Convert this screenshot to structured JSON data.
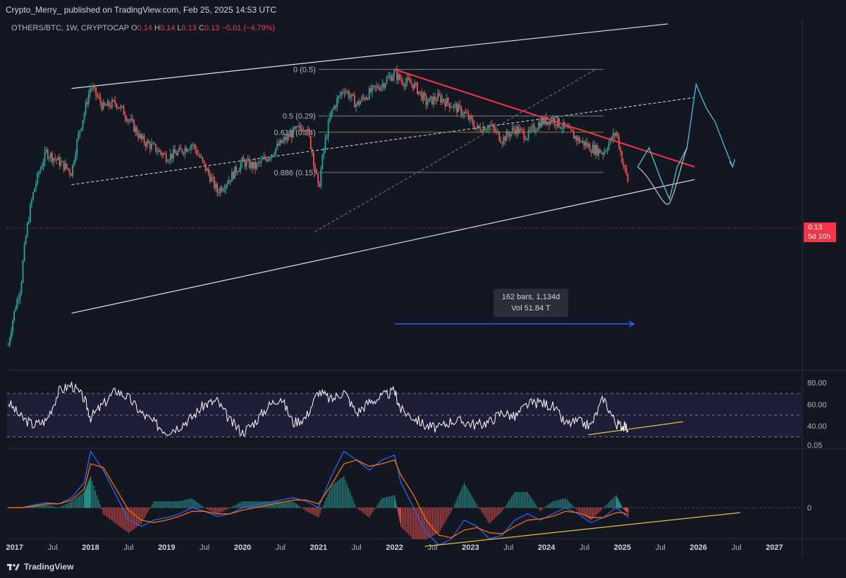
{
  "header": {
    "publisher": "Crypto_Merry_ published on TradingView.com, Feb 25, 2025 14:53 UTC"
  },
  "symbol": {
    "name": "OTHERS/BTC, 1W, CRYPTOCAP",
    "open_key": "O",
    "open": "0.14",
    "high_key": "H",
    "high": "0.14",
    "low_key": "L",
    "low": "0.13",
    "close_key": "C",
    "close": "0.13",
    "change": "−0.01 (−4.79%)"
  },
  "price_badge": {
    "price": "0.13",
    "countdown": "5d 10h"
  },
  "measure": {
    "bars": "162 bars, 1,134d",
    "vol": "Vol 51.84 T"
  },
  "footer": {
    "brand": "TradingView"
  },
  "colors": {
    "background": "#131722",
    "up_candle": "#26a69a",
    "down_candle": "#ef5350",
    "trendline_red": "#f23645",
    "fib_gold": "#8c7d2c",
    "projection": "#4fb3c9",
    "measure_arrow": "#2962ff",
    "rsi_line": "#ffffff",
    "macd_line": "#2962ff",
    "signal_line": "#ff6d00",
    "support_line": "#e0c43a"
  },
  "chart_data": [
    {
      "type": "line",
      "title": "OTHERS/BTC, 1W, CRYPTOCAP",
      "xlabel": "",
      "ylabel": "",
      "x_ticks": [
        "2017",
        "Jul",
        "2018",
        "Jul",
        "2019",
        "Jul",
        "2020",
        "Jul",
        "2021",
        "Jul",
        "2022",
        "Jul",
        "2023",
        "Jul",
        "2024",
        "Jul",
        "2025",
        "Jul",
        "2026",
        "Jul",
        "2027"
      ],
      "fib_levels": [
        {
          "label": "0 (0.5)",
          "value": 0.5
        },
        {
          "label": "0.5 (0.29)",
          "value": 0.29
        },
        {
          "label": "0.618 (0.24)",
          "value": 0.24
        },
        {
          "label": "0.886 (0.15)",
          "value": 0.15
        }
      ],
      "series": [
        {
          "x": [
            "2016-12",
            "2017-02",
            "2017-04",
            "2017-06",
            "2017-08",
            "2017-10",
            "2017-12",
            "2018-01",
            "2018-03",
            "2018-05",
            "2018-07",
            "2018-09",
            "2018-11",
            "2019-01",
            "2019-03",
            "2019-05",
            "2019-07",
            "2019-09",
            "2019-11",
            "2020-01",
            "2020-03",
            "2020-05",
            "2020-07",
            "2020-09",
            "2020-11",
            "2021-01",
            "2021-03",
            "2021-05",
            "2021-07",
            "2021-09",
            "2021-11",
            "2022-01",
            "2022-02",
            "2022-04",
            "2022-06",
            "2022-08",
            "2022-10",
            "2022-12",
            "2023-02",
            "2023-04",
            "2023-06",
            "2023-08",
            "2023-10",
            "2023-12",
            "2024-02",
            "2024-04",
            "2024-06",
            "2024-08",
            "2024-10",
            "2024-12",
            "2025-01",
            "2025-02"
          ],
          "values": [
            0.02,
            0.04,
            0.12,
            0.19,
            0.17,
            0.15,
            0.3,
            0.41,
            0.32,
            0.34,
            0.28,
            0.22,
            0.2,
            0.18,
            0.19,
            0.21,
            0.16,
            0.12,
            0.14,
            0.17,
            0.16,
            0.18,
            0.21,
            0.24,
            0.26,
            0.12,
            0.3,
            0.4,
            0.33,
            0.38,
            0.42,
            0.48,
            0.44,
            0.42,
            0.34,
            0.36,
            0.33,
            0.3,
            0.25,
            0.26,
            0.22,
            0.25,
            0.23,
            0.27,
            0.28,
            0.25,
            0.22,
            0.2,
            0.19,
            0.24,
            0.17,
            0.13
          ]
        }
      ]
    },
    {
      "type": "line",
      "title": "",
      "y_ticks": [
        "80.00",
        "60.00",
        "40.00"
      ],
      "bands": [
        30,
        70
      ],
      "series": [
        {
          "values": [
            62,
            48,
            41,
            45,
            72,
            78,
            65,
            48,
            60,
            73,
            66,
            52,
            43,
            35,
            40,
            48,
            60,
            63,
            45,
            34,
            44,
            58,
            67,
            43,
            48,
            72,
            64,
            72,
            52,
            62,
            67,
            72,
            55,
            48,
            40,
            38,
            45,
            44,
            41,
            44,
            53,
            48,
            60,
            62,
            58,
            42,
            44,
            40,
            66,
            42,
            40,
            38
          ]
        }
      ]
    },
    {
      "type": "line",
      "title": "",
      "y_ticks": [
        "0.05",
        "0"
      ],
      "series": [
        {
          "values": [
            0.0,
            0.0,
            0.002,
            0.004,
            0.003,
            0.008,
            0.02,
            0.045,
            0.03,
            0.01,
            -0.01,
            -0.015,
            -0.01,
            -0.008,
            -0.005,
            0.0,
            -0.003,
            -0.007,
            -0.005,
            0.0,
            0.002,
            0.004,
            0.006,
            0.008,
            0.005,
            0.0,
            0.025,
            0.045,
            0.038,
            0.03,
            0.038,
            0.042,
            0.02,
            0.0,
            -0.02,
            -0.03,
            -0.025,
            -0.01,
            -0.015,
            -0.025,
            -0.022,
            -0.01,
            -0.005,
            -0.01,
            -0.005,
            0.0,
            -0.005,
            -0.012,
            -0.008,
            0.0,
            -0.004,
            -0.008
          ]
        },
        {
          "values": [
            0.0,
            0.0,
            0.001,
            0.003,
            0.003,
            0.006,
            0.015,
            0.035,
            0.032,
            0.015,
            -0.002,
            -0.01,
            -0.012,
            -0.01,
            -0.007,
            -0.003,
            -0.003,
            -0.005,
            -0.005,
            -0.002,
            0.0,
            0.002,
            0.004,
            0.006,
            0.006,
            0.003,
            0.018,
            0.035,
            0.038,
            0.033,
            0.035,
            0.038,
            0.026,
            0.01,
            -0.01,
            -0.022,
            -0.024,
            -0.018,
            -0.016,
            -0.02,
            -0.021,
            -0.015,
            -0.01,
            -0.009,
            -0.007,
            -0.003,
            -0.004,
            -0.008,
            -0.008,
            -0.004,
            -0.004,
            -0.006
          ]
        }
      ]
    }
  ]
}
